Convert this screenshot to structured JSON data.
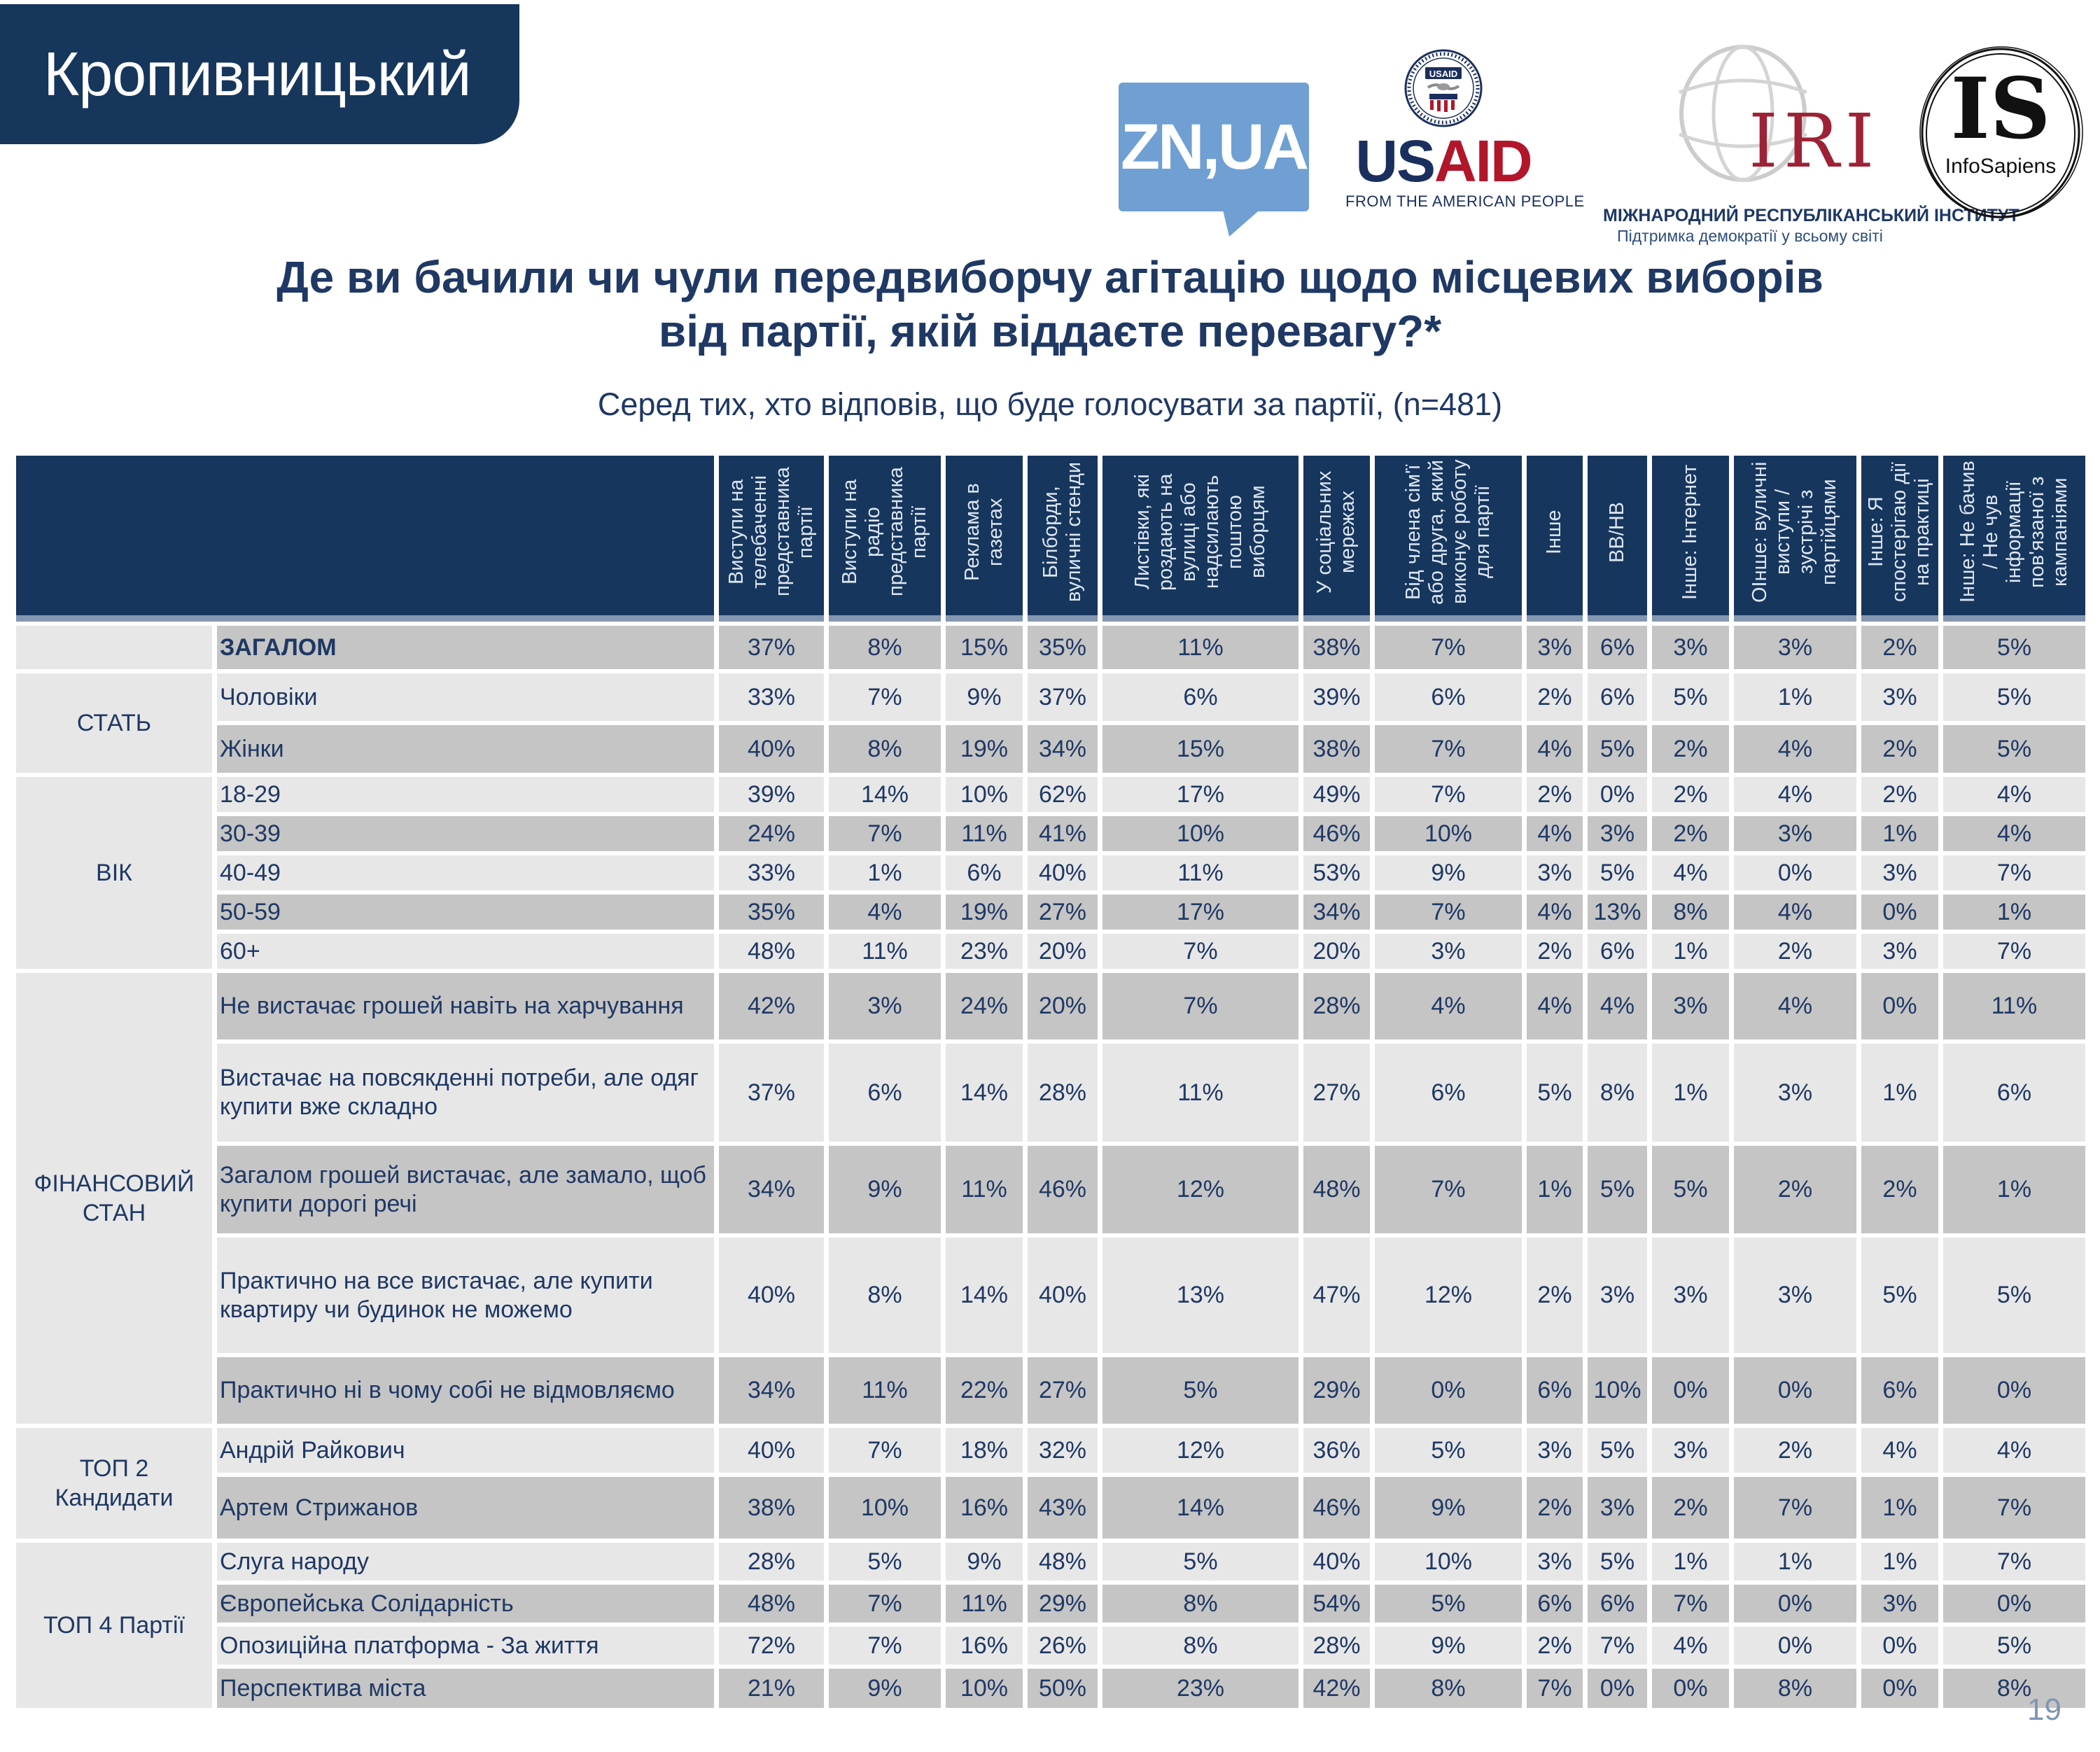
{
  "badge": {
    "text": "Кропивницький"
  },
  "logos": {
    "znua": {
      "text": "ZN,UA"
    },
    "usaid": {
      "seal_text": "USAID",
      "wordmark_us": "US",
      "wordmark_aid": "AID",
      "tagline": "FROM THE AMERICAN PEOPLE"
    },
    "iri": {
      "acronym": "IRI",
      "name": "МІЖНАРОДНИЙ РЕСПУБЛІКАНСЬКИЙ ІНСТИТУТ",
      "tagline": "Підтримка демократії у всьому світі"
    },
    "infosapiens": {
      "acronym": "IS",
      "name": "InfoSapiens"
    }
  },
  "title": {
    "line1": "Де ви бачили чи чули передвиборчу агітацію щодо місцевих виборів",
    "line2": "від партії, якій віддаєте перевагу?*",
    "subtitle": "Серед тих, хто відповів, що буде голосувати за партії, (n=481)"
  },
  "page_number": "19",
  "table": {
    "column_headers": [
      "Виступи на телебаченні представника партії",
      "Виступи на радіо представника партії",
      "Реклама в газетах",
      "Білборди, вуличні стенди",
      "Листівки, які роздають на вулиці або надсилають поштою виборцям",
      "У соціальних мережах",
      "Від члена сім'ї або друга, який виконує роботу для партії",
      "Інше",
      "ВВ/НВ",
      "Інше: Інтернет",
      "ОІнше: вуличні виступи / зустрічі з партійцями",
      "Інше: Я спостерігаю дії на практиці",
      "Інше: Не бачив / Не чув інформації пов'язаної з кампаніями"
    ],
    "groups": [
      {
        "label": "",
        "rows": [
          0
        ]
      },
      {
        "label": "СТАТЬ",
        "rows": [
          1,
          2
        ]
      },
      {
        "label": "ВІК",
        "rows": [
          3,
          4,
          5,
          6,
          7
        ]
      },
      {
        "label": "ФІНАНСОВИЙ СТАН",
        "rows": [
          8,
          9,
          10,
          11,
          12
        ]
      },
      {
        "label": "ТОП 2 Кандидати",
        "rows": [
          13,
          14
        ]
      },
      {
        "label": "ТОП 4 Партії",
        "rows": [
          15,
          16,
          17,
          18
        ]
      }
    ],
    "rows": [
      {
        "label": "ЗАГАЛОМ",
        "values": [
          "37%",
          "8%",
          "15%",
          "35%",
          "11%",
          "38%",
          "7%",
          "3%",
          "6%",
          "3%",
          "3%",
          "2%",
          "5%"
        ]
      },
      {
        "label": "Чоловіки",
        "values": [
          "33%",
          "7%",
          "9%",
          "37%",
          "6%",
          "39%",
          "6%",
          "2%",
          "6%",
          "5%",
          "1%",
          "3%",
          "5%"
        ]
      },
      {
        "label": "Жінки",
        "values": [
          "40%",
          "8%",
          "19%",
          "34%",
          "15%",
          "38%",
          "7%",
          "4%",
          "5%",
          "2%",
          "4%",
          "2%",
          "5%"
        ]
      },
      {
        "label": "18-29",
        "values": [
          "39%",
          "14%",
          "10%",
          "62%",
          "17%",
          "49%",
          "7%",
          "2%",
          "0%",
          "2%",
          "4%",
          "2%",
          "4%"
        ]
      },
      {
        "label": "30-39",
        "values": [
          "24%",
          "7%",
          "11%",
          "41%",
          "10%",
          "46%",
          "10%",
          "4%",
          "3%",
          "2%",
          "3%",
          "1%",
          "4%"
        ]
      },
      {
        "label": "40-49",
        "values": [
          "33%",
          "1%",
          "6%",
          "40%",
          "11%",
          "53%",
          "9%",
          "3%",
          "5%",
          "4%",
          "0%",
          "3%",
          "7%"
        ]
      },
      {
        "label": "50-59",
        "values": [
          "35%",
          "4%",
          "19%",
          "27%",
          "17%",
          "34%",
          "7%",
          "4%",
          "13%",
          "8%",
          "4%",
          "0%",
          "1%"
        ]
      },
      {
        "label": "60+",
        "values": [
          "48%",
          "11%",
          "23%",
          "20%",
          "7%",
          "20%",
          "3%",
          "2%",
          "6%",
          "1%",
          "2%",
          "3%",
          "7%"
        ]
      },
      {
        "label": "Не вистачає грошей навіть на харчування",
        "values": [
          "42%",
          "3%",
          "24%",
          "20%",
          "7%",
          "28%",
          "4%",
          "4%",
          "4%",
          "3%",
          "4%",
          "0%",
          "11%"
        ]
      },
      {
        "label": "Вистачає на повсякденні потреби, але одяг купити вже складно",
        "values": [
          "37%",
          "6%",
          "14%",
          "28%",
          "11%",
          "27%",
          "6%",
          "5%",
          "8%",
          "1%",
          "3%",
          "1%",
          "6%"
        ]
      },
      {
        "label": "Загалом грошей вистачає, але замало, щоб купити дорогі речі",
        "values": [
          "34%",
          "9%",
          "11%",
          "46%",
          "12%",
          "48%",
          "7%",
          "1%",
          "5%",
          "5%",
          "2%",
          "2%",
          "1%"
        ]
      },
      {
        "label": "Практично на все вистачає, але купити квартиру чи будинок не можемо",
        "values": [
          "40%",
          "8%",
          "14%",
          "40%",
          "13%",
          "47%",
          "12%",
          "2%",
          "3%",
          "3%",
          "3%",
          "5%",
          "5%"
        ]
      },
      {
        "label": "Практично ні в чому собі не відмовляємо",
        "values": [
          "34%",
          "11%",
          "22%",
          "27%",
          "5%",
          "29%",
          "0%",
          "6%",
          "10%",
          "0%",
          "0%",
          "6%",
          "0%"
        ]
      },
      {
        "label": "Андрій Райкович",
        "values": [
          "40%",
          "7%",
          "18%",
          "32%",
          "12%",
          "36%",
          "5%",
          "3%",
          "5%",
          "3%",
          "2%",
          "4%",
          "4%"
        ]
      },
      {
        "label": "Артем Стрижанов",
        "values": [
          "38%",
          "10%",
          "16%",
          "43%",
          "14%",
          "46%",
          "9%",
          "2%",
          "3%",
          "2%",
          "7%",
          "1%",
          "7%"
        ]
      },
      {
        "label": "Слуга народу",
        "values": [
          "28%",
          "5%",
          "9%",
          "48%",
          "5%",
          "40%",
          "10%",
          "3%",
          "5%",
          "1%",
          "1%",
          "1%",
          "7%"
        ]
      },
      {
        "label": "Європейська Солідарність",
        "values": [
          "48%",
          "7%",
          "11%",
          "29%",
          "8%",
          "54%",
          "5%",
          "6%",
          "6%",
          "7%",
          "0%",
          "3%",
          "0%"
        ]
      },
      {
        "label": "Опозиційна платформа - За життя",
        "values": [
          "72%",
          "7%",
          "16%",
          "26%",
          "8%",
          "28%",
          "9%",
          "2%",
          "7%",
          "4%",
          "0%",
          "0%",
          "5%"
        ]
      },
      {
        "label": "Перспектива міста",
        "values": [
          "21%",
          "9%",
          "10%",
          "50%",
          "23%",
          "42%",
          "8%",
          "7%",
          "0%",
          "0%",
          "8%",
          "0%",
          "8%"
        ]
      }
    ]
  }
}
